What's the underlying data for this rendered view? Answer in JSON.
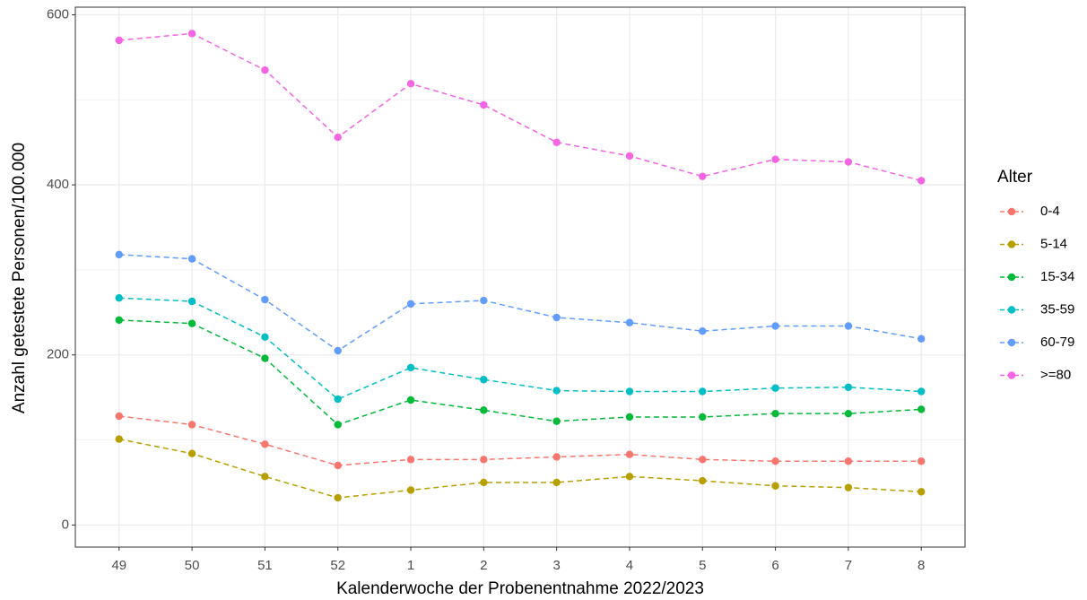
{
  "chart_data": {
    "type": "line",
    "x_label": "Kalenderwoche der Probenentnahme 2022/2023",
    "y_label": "Anzahl getestete Personen/100.000",
    "categories": [
      "49",
      "50",
      "51",
      "52",
      "1",
      "2",
      "3",
      "4",
      "5",
      "6",
      "7",
      "8"
    ],
    "ylim": [
      -26,
      609
    ],
    "yticks": [
      0,
      200,
      400,
      600
    ],
    "minor_yticks": [
      100,
      300,
      500
    ],
    "grid": true,
    "line_style": "dashed",
    "legend_title": "Alter",
    "legend_position": "right",
    "series": [
      {
        "name": "0-4",
        "color": "#F8766D",
        "values": [
          128,
          118,
          95,
          70,
          77,
          77,
          80,
          83,
          77,
          75,
          75,
          75
        ]
      },
      {
        "name": "5-14",
        "color": "#B79F00",
        "values": [
          101,
          84,
          57,
          32,
          41,
          50,
          50,
          57,
          52,
          46,
          44,
          39
        ]
      },
      {
        "name": "15-34",
        "color": "#00BA38",
        "values": [
          241,
          237,
          196,
          118,
          147,
          135,
          122,
          127,
          127,
          131,
          131,
          136
        ]
      },
      {
        "name": "35-59",
        "color": "#00BFC4",
        "values": [
          267,
          263,
          221,
          148,
          185,
          171,
          158,
          157,
          157,
          161,
          162,
          157
        ]
      },
      {
        "name": "60-79",
        "color": "#619CFF",
        "values": [
          318,
          313,
          265,
          205,
          260,
          264,
          244,
          238,
          228,
          234,
          234,
          219
        ]
      },
      {
        "name": ">=80",
        "color": "#F564E3",
        "values": [
          570,
          578,
          535,
          456,
          519,
          494,
          450,
          434,
          410,
          430,
          427,
          405
        ]
      }
    ]
  }
}
